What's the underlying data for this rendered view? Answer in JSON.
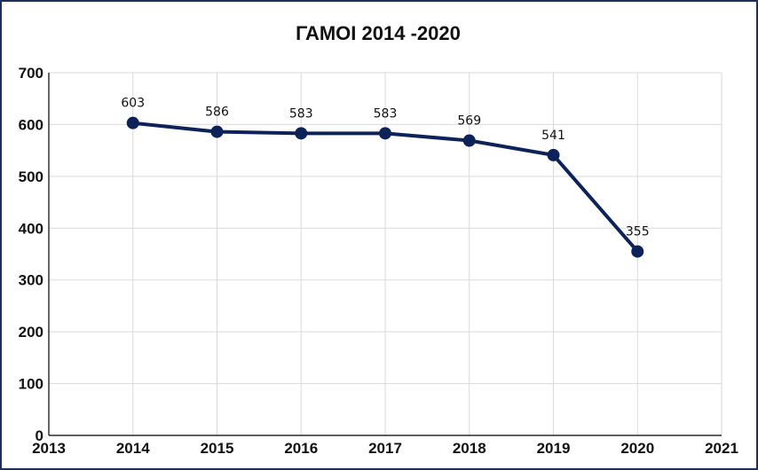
{
  "chart_data": {
    "type": "line",
    "title": "ΓΑΜΟΙ 2014 -2020",
    "xlabel": "",
    "ylabel": "",
    "xlim": [
      2013,
      2021
    ],
    "ylim": [
      0,
      700
    ],
    "x_ticks": [
      "2013",
      "2014",
      "2015",
      "2016",
      "2017",
      "2018",
      "2019",
      "2020",
      "2021"
    ],
    "y_ticks": [
      "0",
      "100",
      "200",
      "300",
      "400",
      "500",
      "600",
      "700"
    ],
    "grid": true,
    "legend": "none",
    "series": [
      {
        "x": [
          2014,
          2015,
          2016,
          2017,
          2018,
          2019,
          2020
        ],
        "values": [
          603,
          586,
          583,
          583,
          569,
          541,
          355
        ],
        "labels": [
          "603",
          "586",
          "583",
          "583",
          "569",
          "541",
          "355"
        ],
        "color": "#0d2258"
      }
    ]
  }
}
